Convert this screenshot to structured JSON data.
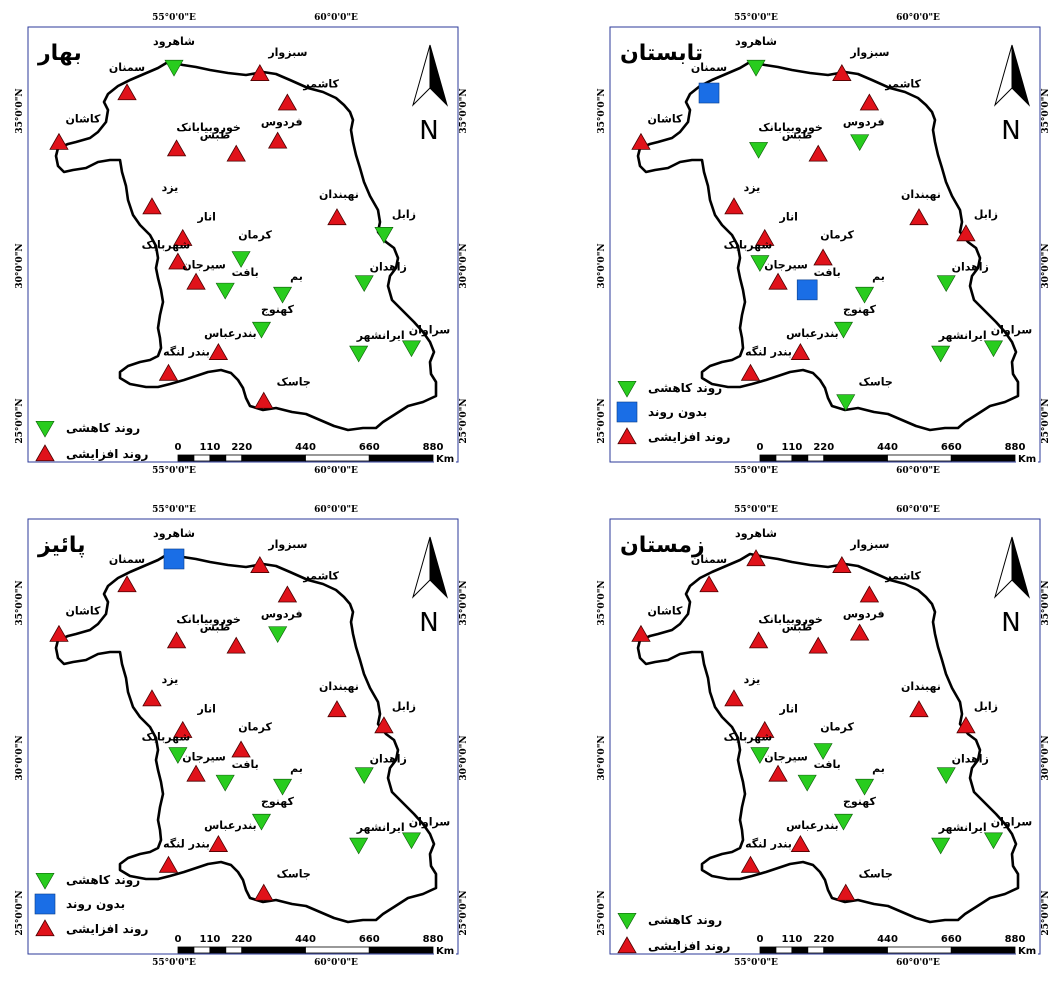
{
  "colors": {
    "increase": "#e0121a",
    "decrease": "#28cc1e",
    "notrend": "#1a6ee6",
    "frame": "#2b3a9a"
  },
  "icons": {
    "increase": "red-triangle-up-icon",
    "decrease": "green-triangle-down-icon",
    "notrend": "blue-square-icon",
    "north": "north-arrow-icon"
  },
  "axes": {
    "lon_labels": [
      "55°0'0\"E",
      "60°0'0\"E"
    ],
    "lat_labels": [
      "35°0'0\"N",
      "30°0'0\"N",
      "25°0'0\"N"
    ]
  },
  "north_letter": "N",
  "scalebar": {
    "labels": [
      "0",
      "110",
      "220",
      "440",
      "660",
      "880"
    ],
    "values": [
      0,
      110,
      220,
      440,
      660,
      880
    ],
    "unit": "Km"
  },
  "legend_labels": {
    "decrease": "روند کاهشی",
    "notrend": "بدون روند",
    "increase": "روند افزایشی"
  },
  "stations": [
    {
      "key": "shahrood",
      "name": "شاهرود",
      "lon": 55.0,
      "lat": 36.42
    },
    {
      "key": "semnan",
      "name": "سمنان",
      "lon": 53.55,
      "lat": 35.58
    },
    {
      "key": "sabzevar",
      "name": "سبزوار",
      "lon": 57.65,
      "lat": 36.2
    },
    {
      "key": "kashmar",
      "name": "کاشمر",
      "lon": 58.5,
      "lat": 35.25
    },
    {
      "key": "ferdows",
      "name": "فردوس",
      "lon": 58.2,
      "lat": 34.02
    },
    {
      "key": "kashan",
      "name": "کاشان",
      "lon": 51.45,
      "lat": 33.98
    },
    {
      "key": "khoor",
      "name": "خوروبیابانک",
      "lon": 55.08,
      "lat": 33.77
    },
    {
      "key": "tabas",
      "name": "طبس",
      "lon": 56.92,
      "lat": 33.6
    },
    {
      "key": "yazd",
      "name": "یزد",
      "lon": 54.32,
      "lat": 31.9
    },
    {
      "key": "nehbandan",
      "name": "نهبندان",
      "lon": 60.03,
      "lat": 31.55
    },
    {
      "key": "zabol",
      "name": "زابل",
      "lon": 61.48,
      "lat": 31.03
    },
    {
      "key": "anar",
      "name": "انار",
      "lon": 55.27,
      "lat": 30.88
    },
    {
      "key": "kerman",
      "name": "کرمان",
      "lon": 57.07,
      "lat": 30.25
    },
    {
      "key": "shahrbabak",
      "name": "شهربابک",
      "lon": 55.12,
      "lat": 30.12
    },
    {
      "key": "zahedan",
      "name": "زاهدان",
      "lon": 60.87,
      "lat": 29.47
    },
    {
      "key": "sirjan",
      "name": "سیرجان",
      "lon": 55.68,
      "lat": 29.47
    },
    {
      "key": "baft",
      "name": "بافت",
      "lon": 56.58,
      "lat": 29.23
    },
    {
      "key": "bam",
      "name": "بم",
      "lon": 58.35,
      "lat": 29.1
    },
    {
      "key": "kahnooj",
      "name": "کهنوج",
      "lon": 57.7,
      "lat": 27.97
    },
    {
      "key": "bandarabbas",
      "name": "بندرعباس",
      "lon": 56.37,
      "lat": 27.2
    },
    {
      "key": "bandarlengeh",
      "name": "بندر لنگه",
      "lon": 54.83,
      "lat": 26.53
    },
    {
      "key": "iranshahr",
      "name": "ایرانشهر",
      "lon": 60.7,
      "lat": 27.2
    },
    {
      "key": "saravan",
      "name": "سراوان",
      "lon": 62.33,
      "lat": 27.37
    },
    {
      "key": "jask",
      "name": "جاسک",
      "lon": 57.77,
      "lat": 25.63
    }
  ],
  "panels": [
    {
      "id": "spring",
      "title": "بهار",
      "has_notrend": false,
      "trends": {
        "shahrood": "decrease",
        "semnan": "increase",
        "sabzevar": "increase",
        "kashmar": "increase",
        "ferdows": "increase",
        "kashan": "increase",
        "khoor": "increase",
        "tabas": "increase",
        "yazd": "increase",
        "nehbandan": "increase",
        "zabol": "decrease",
        "anar": "increase",
        "kerman": "decrease",
        "shahrbabak": "increase",
        "zahedan": "decrease",
        "sirjan": "increase",
        "baft": "decrease",
        "bam": "decrease",
        "kahnooj": "decrease",
        "bandarabbas": "increase",
        "bandarlengeh": "increase",
        "iranshahr": "decrease",
        "saravan": "decrease",
        "jask": "increase"
      }
    },
    {
      "id": "summer",
      "title": "تابستان",
      "has_notrend": true,
      "trends": {
        "shahrood": "decrease",
        "semnan": "notrend",
        "sabzevar": "increase",
        "kashmar": "increase",
        "ferdows": "decrease",
        "kashan": "increase",
        "khoor": "decrease",
        "tabas": "increase",
        "yazd": "increase",
        "nehbandan": "increase",
        "zabol": "increase",
        "anar": "increase",
        "kerman": "increase",
        "shahrbabak": "decrease",
        "zahedan": "decrease",
        "sirjan": "increase",
        "baft": "notrend",
        "bam": "decrease",
        "kahnooj": "decrease",
        "bandarabbas": "increase",
        "bandarlengeh": "increase",
        "iranshahr": "decrease",
        "saravan": "decrease",
        "jask": "decrease"
      }
    },
    {
      "id": "autumn",
      "title": "پائیز",
      "has_notrend": true,
      "trends": {
        "shahrood": "notrend",
        "semnan": "increase",
        "sabzevar": "increase",
        "kashmar": "increase",
        "ferdows": "decrease",
        "kashan": "increase",
        "khoor": "increase",
        "tabas": "increase",
        "yazd": "increase",
        "nehbandan": "increase",
        "zabol": "increase",
        "anar": "increase",
        "kerman": "increase",
        "shahrbabak": "decrease",
        "zahedan": "decrease",
        "sirjan": "increase",
        "baft": "decrease",
        "bam": "decrease",
        "kahnooj": "decrease",
        "bandarabbas": "increase",
        "bandarlengeh": "increase",
        "iranshahr": "decrease",
        "saravan": "decrease",
        "jask": "increase"
      }
    },
    {
      "id": "winter",
      "title": "زمستان",
      "has_notrend": false,
      "trends": {
        "shahrood": "increase",
        "semnan": "increase",
        "sabzevar": "increase",
        "kashmar": "increase",
        "ferdows": "increase",
        "kashan": "increase",
        "khoor": "increase",
        "tabas": "increase",
        "yazd": "increase",
        "nehbandan": "increase",
        "zabol": "increase",
        "anar": "increase",
        "kerman": "decrease",
        "shahrbabak": "decrease",
        "zahedan": "decrease",
        "sirjan": "increase",
        "baft": "decrease",
        "bam": "decrease",
        "kahnooj": "decrease",
        "bandarabbas": "increase",
        "bandarlengeh": "increase",
        "iranshahr": "decrease",
        "saravan": "decrease",
        "jask": "increase"
      }
    }
  ]
}
